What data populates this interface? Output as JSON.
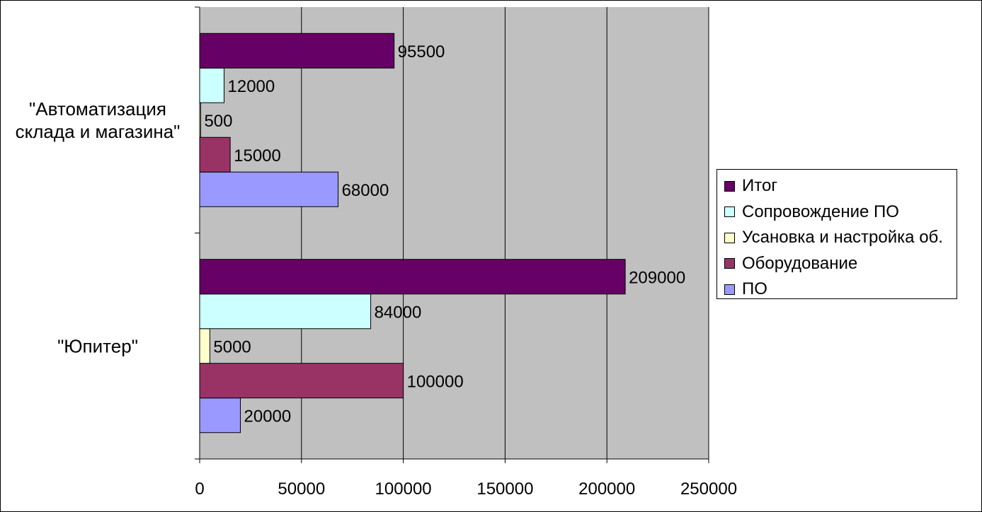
{
  "chart_data": {
    "type": "bar",
    "orientation": "horizontal",
    "categories": [
      "\"Юпитер\"",
      "\"Автоматизация склада и магазина\""
    ],
    "category_lines": [
      [
        "\"Юпитер\""
      ],
      [
        "\"Автоматизация",
        "склада и магазина\""
      ]
    ],
    "series": [
      {
        "name": "ПО",
        "color": "#9999ff",
        "values": [
          20000,
          68000
        ]
      },
      {
        "name": "Оборудование",
        "color": "#993366",
        "values": [
          100000,
          15000
        ]
      },
      {
        "name": "Усановка и настройка об.",
        "color": "#ffffcc",
        "values": [
          5000,
          500
        ]
      },
      {
        "name": "Сопровождение ПО",
        "color": "#ccffff",
        "values": [
          84000,
          12000
        ]
      },
      {
        "name": "Итог",
        "color": "#660066",
        "values": [
          209000,
          95500
        ]
      }
    ],
    "legend_order": [
      4,
      3,
      2,
      1,
      0
    ],
    "xlim": [
      0,
      250000
    ],
    "x_ticks": [
      0,
      50000,
      100000,
      150000,
      200000,
      250000
    ],
    "grid": true,
    "plot_background": "#c0c0c0",
    "legend_position": "right"
  }
}
